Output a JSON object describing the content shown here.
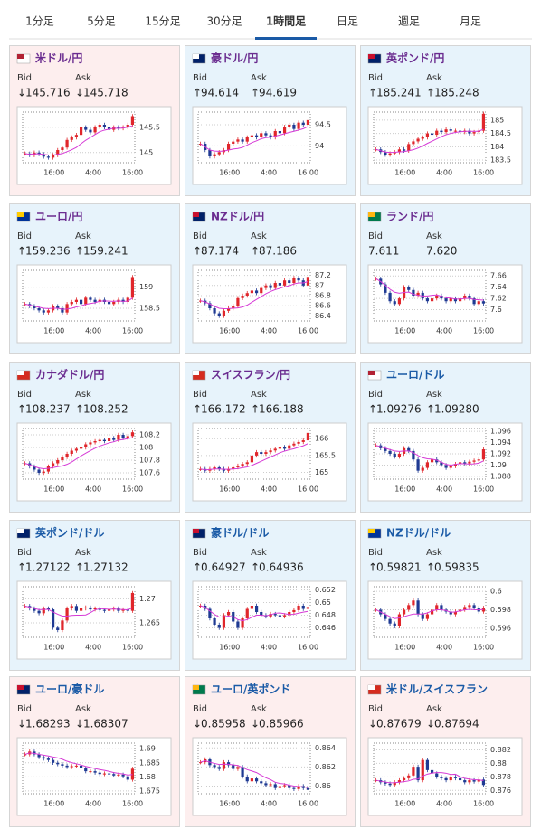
{
  "tabs": {
    "items": [
      "1分足",
      "5分足",
      "15分足",
      "30分足",
      "1時間足",
      "日足",
      "週足",
      "月足"
    ],
    "active": 4
  },
  "labels": {
    "bid": "Bid",
    "ask": "Ask"
  },
  "xlabels": [
    "16:00",
    "4:00",
    "16:00"
  ],
  "cards": [
    {
      "name": "米ドル/円",
      "title_color": "#6b2d90",
      "trend": "down",
      "arrow": "↓",
      "bid": "145.716",
      "ask": "145.718",
      "ylim": [
        144.8,
        145.8
      ],
      "yticks": [
        145.5,
        145
      ],
      "values": [
        144.98,
        144.95,
        145.0,
        144.97,
        144.92,
        144.9,
        144.95,
        145.05,
        145.1,
        145.25,
        145.3,
        145.35,
        145.5,
        145.45,
        145.4,
        145.5,
        145.55,
        145.5,
        145.45,
        145.5,
        145.48,
        145.5,
        145.55,
        145.72
      ]
    },
    {
      "name": "豪ドル/円",
      "title_color": "#6b2d90",
      "trend": "up",
      "arrow": "↑",
      "bid": "94.614",
      "ask": "94.619",
      "ylim": [
        93.6,
        94.8
      ],
      "yticks": [
        94.5,
        94
      ],
      "values": [
        94.05,
        93.9,
        93.75,
        93.8,
        93.85,
        93.9,
        94.05,
        94.1,
        94.15,
        94.1,
        94.2,
        94.25,
        94.2,
        94.3,
        94.25,
        94.2,
        94.35,
        94.3,
        94.45,
        94.5,
        94.4,
        94.55,
        94.5,
        94.61
      ]
    },
    {
      "name": "英ポンド/円",
      "title_color": "#6b2d90",
      "trend": "up",
      "arrow": "↑",
      "bid": "185.241",
      "ask": "185.248",
      "ylim": [
        183.4,
        185.3
      ],
      "yticks": [
        185,
        184.5,
        184,
        183.5
      ],
      "values": [
        183.9,
        183.8,
        183.7,
        183.75,
        183.8,
        183.9,
        183.85,
        184.1,
        184.2,
        184.3,
        184.35,
        184.5,
        184.45,
        184.6,
        184.55,
        184.65,
        184.6,
        184.6,
        184.55,
        184.6,
        184.5,
        184.55,
        184.6,
        185.24
      ]
    },
    {
      "name": "ユーロ/円",
      "title_color": "#6b2d90",
      "trend": "up",
      "arrow": "↑",
      "bid": "159.236",
      "ask": "159.241",
      "ylim": [
        158.2,
        159.4
      ],
      "yticks": [
        159,
        158.5
      ],
      "values": [
        158.6,
        158.55,
        158.5,
        158.45,
        158.4,
        158.45,
        158.55,
        158.5,
        158.4,
        158.6,
        158.65,
        158.7,
        158.6,
        158.75,
        158.7,
        158.65,
        158.7,
        158.65,
        158.6,
        158.65,
        158.7,
        158.65,
        158.75,
        159.24
      ]
    },
    {
      "name": "NZドル/円",
      "title_color": "#6b2d90",
      "trend": "up",
      "arrow": "↑",
      "bid": "87.174",
      "ask": "87.186",
      "ylim": [
        86.3,
        87.3
      ],
      "yticks": [
        87.2,
        87,
        86.8,
        86.6,
        86.4
      ],
      "values": [
        86.7,
        86.65,
        86.55,
        86.45,
        86.4,
        86.5,
        86.55,
        86.6,
        86.75,
        86.8,
        86.85,
        86.9,
        86.85,
        86.95,
        87.0,
        86.95,
        87.05,
        87.0,
        87.1,
        87.05,
        87.15,
        87.1,
        87.0,
        87.17
      ]
    },
    {
      "name": "ランド/円",
      "title_color": "#6b2d90",
      "trend": "up",
      "bid": "7.611",
      "ask": "7.620",
      "ylim": [
        7.58,
        7.67
      ],
      "yticks": [
        7.66,
        7.64,
        7.62,
        7.6
      ],
      "values": [
        7.655,
        7.645,
        7.63,
        7.615,
        7.61,
        7.62,
        7.64,
        7.635,
        7.625,
        7.63,
        7.62,
        7.615,
        7.62,
        7.625,
        7.62,
        7.615,
        7.62,
        7.615,
        7.62,
        7.625,
        7.62,
        7.61,
        7.615,
        7.611
      ]
    },
    {
      "name": "カナダドル/円",
      "title_color": "#6b2d90",
      "trend": "up",
      "arrow": "↑",
      "bid": "108.237",
      "ask": "108.252",
      "ylim": [
        107.5,
        108.3
      ],
      "yticks": [
        108.2,
        108,
        107.8,
        107.6
      ],
      "values": [
        107.75,
        107.7,
        107.65,
        107.6,
        107.62,
        107.7,
        107.75,
        107.8,
        107.85,
        107.9,
        107.95,
        107.98,
        108.0,
        108.05,
        108.08,
        108.1,
        108.12,
        108.1,
        108.15,
        108.12,
        108.2,
        108.15,
        108.18,
        108.24
      ]
    },
    {
      "name": "スイスフラン/円",
      "title_color": "#6b2d90",
      "trend": "up",
      "arrow": "↑",
      "bid": "166.172",
      "ask": "166.188",
      "ylim": [
        164.8,
        166.3
      ],
      "yticks": [
        166,
        165.5,
        165
      ],
      "values": [
        165.1,
        165.05,
        165.1,
        165.15,
        165.1,
        165.05,
        165.1,
        165.15,
        165.2,
        165.25,
        165.3,
        165.5,
        165.6,
        165.55,
        165.6,
        165.65,
        165.7,
        165.75,
        165.7,
        165.8,
        165.85,
        165.9,
        165.95,
        166.17
      ]
    },
    {
      "name": "ユーロ/ドル",
      "title_color": "#1a5aa6",
      "trend": "up",
      "arrow": "↑",
      "bid": "1.09276",
      "ask": "1.09280",
      "ylim": [
        1.0875,
        1.0965
      ],
      "yticks": [
        1.096,
        1.094,
        1.092,
        1.09,
        1.088
      ],
      "values": [
        1.0935,
        1.093,
        1.0925,
        1.092,
        1.0915,
        1.092,
        1.093,
        1.0925,
        1.091,
        1.089,
        1.0895,
        1.0905,
        1.091,
        1.0905,
        1.09,
        1.0895,
        1.0898,
        1.0902,
        1.0905,
        1.0903,
        1.0906,
        1.0908,
        1.091,
        1.0928
      ]
    },
    {
      "name": "英ポンド/ドル",
      "title_color": "#1a5aa6",
      "trend": "up",
      "arrow": "↑",
      "bid": "1.27122",
      "ask": "1.27132",
      "ylim": [
        1.262,
        1.2725
      ],
      "yticks": [
        1.27,
        1.265
      ],
      "values": [
        1.2685,
        1.268,
        1.2675,
        1.267,
        1.268,
        1.2678,
        1.264,
        1.2635,
        1.2655,
        1.268,
        1.2685,
        1.2675,
        1.268,
        1.2682,
        1.2678,
        1.268,
        1.2677,
        1.2675,
        1.2678,
        1.268,
        1.2675,
        1.2678,
        1.2675,
        1.2712
      ]
    },
    {
      "name": "豪ドル/ドル",
      "title_color": "#1a5aa6",
      "trend": "up",
      "arrow": "↑",
      "bid": "0.64927",
      "ask": "0.64936",
      "ylim": [
        0.6445,
        0.6525
      ],
      "yticks": [
        0.652,
        0.65,
        0.648,
        0.646
      ],
      "values": [
        0.6495,
        0.649,
        0.6475,
        0.6465,
        0.646,
        0.648,
        0.6485,
        0.647,
        0.646,
        0.6475,
        0.649,
        0.6495,
        0.6485,
        0.648,
        0.6478,
        0.6482,
        0.648,
        0.6478,
        0.648,
        0.6485,
        0.6488,
        0.6495,
        0.649,
        0.6493
      ]
    },
    {
      "name": "NZドル/ドル",
      "title_color": "#1a5aa6",
      "trend": "up",
      "arrow": "↑",
      "bid": "0.59821",
      "ask": "0.59835",
      "ylim": [
        0.595,
        0.6005
      ],
      "yticks": [
        0.6,
        0.598,
        0.596
      ],
      "values": [
        0.598,
        0.5975,
        0.597,
        0.5965,
        0.5962,
        0.5975,
        0.598,
        0.5985,
        0.599,
        0.5975,
        0.597,
        0.5975,
        0.598,
        0.5985,
        0.598,
        0.5978,
        0.5975,
        0.5978,
        0.598,
        0.5983,
        0.5985,
        0.5982,
        0.5978,
        0.5982
      ]
    },
    {
      "name": "ユーロ/豪ドル",
      "title_color": "#1a5aa6",
      "trend": "down",
      "arrow": "↓",
      "bid": "1.68293",
      "ask": "1.68307",
      "ylim": [
        1.674,
        1.692
      ],
      "yticks": [
        1.69,
        1.685,
        1.68,
        1.675
      ],
      "values": [
        1.688,
        1.689,
        1.688,
        1.687,
        1.6865,
        1.686,
        1.685,
        1.6845,
        1.684,
        1.6835,
        1.6838,
        1.684,
        1.683,
        1.682,
        1.682,
        1.6815,
        1.681,
        1.6812,
        1.681,
        1.6805,
        1.6808,
        1.6802,
        1.679,
        1.6829
      ]
    },
    {
      "name": "ユーロ/英ポンド",
      "title_color": "#1a5aa6",
      "trend": "down",
      "arrow": "↓",
      "bid": "0.85958",
      "ask": "0.85966",
      "ylim": [
        0.8592,
        0.8645
      ],
      "yticks": [
        0.864,
        0.862,
        0.86
      ],
      "values": [
        0.8625,
        0.8628,
        0.8622,
        0.862,
        0.8618,
        0.8625,
        0.8622,
        0.8618,
        0.862,
        0.861,
        0.8605,
        0.8608,
        0.8605,
        0.8603,
        0.8601,
        0.8602,
        0.8598,
        0.86,
        0.8601,
        0.8598,
        0.8597,
        0.86,
        0.8598,
        0.8596
      ]
    },
    {
      "name": "米ドル/スイスフラン",
      "title_color": "#1a5aa6",
      "trend": "down",
      "arrow": "↓",
      "bid": "0.87679",
      "ask": "0.87694",
      "ylim": [
        0.8755,
        0.883
      ],
      "yticks": [
        0.882,
        0.88,
        0.878,
        0.876
      ],
      "values": [
        0.8775,
        0.8772,
        0.877,
        0.8768,
        0.8772,
        0.8775,
        0.8778,
        0.8782,
        0.8795,
        0.8775,
        0.8805,
        0.879,
        0.8785,
        0.878,
        0.8778,
        0.8775,
        0.878,
        0.8778,
        0.8775,
        0.8772,
        0.8775,
        0.8773,
        0.8776,
        0.8768
      ]
    }
  ]
}
